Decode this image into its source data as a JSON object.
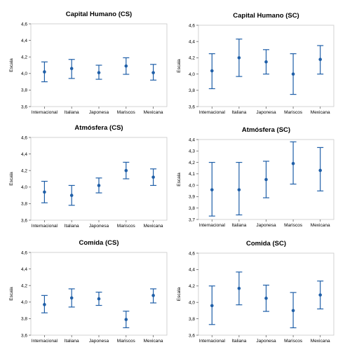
{
  "colors": {
    "marker": "#1f5fa8",
    "frame": "#c8c8c8"
  },
  "chart_data": [
    {
      "type": "errorbar",
      "title": "Capital Humano (CS)",
      "ylabel": "Escala",
      "categories": [
        "Internacional",
        "Italiana",
        "Japonesa",
        "Mariscos",
        "Mexicana"
      ],
      "yticks": [
        "3,6",
        "3,8",
        "4,0",
        "4,2",
        "4,4",
        "4,6"
      ],
      "ylim": [
        3.6,
        4.6
      ],
      "means": [
        4.02,
        4.06,
        4.01,
        4.09,
        4.01
      ],
      "lower": [
        3.9,
        3.94,
        3.93,
        3.99,
        3.92
      ],
      "upper": [
        4.14,
        4.17,
        4.1,
        4.19,
        4.11
      ],
      "grid": false
    },
    {
      "type": "errorbar",
      "title": "Capital Humano (SC)",
      "ylabel": "Escala",
      "categories": [
        "Internacional",
        "Italiana",
        "Japonesa",
        "Mariscos",
        "Mexicana"
      ],
      "yticks": [
        "3,6",
        "3,8",
        "4,0",
        "4,2",
        "4,4",
        "4,6"
      ],
      "ylim": [
        3.6,
        4.6
      ],
      "means": [
        4.04,
        4.2,
        4.15,
        4.0,
        4.18
      ],
      "lower": [
        3.82,
        3.97,
        4.0,
        3.75,
        4.0
      ],
      "upper": [
        4.25,
        4.43,
        4.3,
        4.25,
        4.35
      ],
      "grid": false
    },
    {
      "type": "errorbar",
      "title": "Atmósfera (CS)",
      "ylabel": "Escala",
      "categories": [
        "Internacional",
        "Italiana",
        "Japonesa",
        "Mariscos",
        "Mexicana"
      ],
      "yticks": [
        "3,6",
        "3,8",
        "4,0",
        "4,2",
        "4,4",
        "4,6"
      ],
      "ylim": [
        3.6,
        4.6
      ],
      "means": [
        3.94,
        3.9,
        4.02,
        4.2,
        4.12
      ],
      "lower": [
        3.81,
        3.78,
        3.93,
        4.1,
        4.02
      ],
      "upper": [
        4.07,
        4.02,
        4.11,
        4.3,
        4.22
      ],
      "grid": false
    },
    {
      "type": "errorbar",
      "title": "Atmósfera (SC)",
      "ylabel": "Escala",
      "categories": [
        "Internacional",
        "Italiana",
        "Japonesa",
        "Mariscos",
        "Mexicana"
      ],
      "yticks": [
        "3,7",
        "3,8",
        "3,9",
        "4,0",
        "4,1",
        "4,2",
        "4,3",
        "4,4"
      ],
      "ylim": [
        3.7,
        4.4
      ],
      "means": [
        3.96,
        3.96,
        4.05,
        4.19,
        4.13
      ],
      "lower": [
        3.73,
        3.74,
        3.89,
        4.01,
        3.95
      ],
      "upper": [
        4.2,
        4.2,
        4.21,
        4.38,
        4.33
      ],
      "grid": false
    },
    {
      "type": "errorbar",
      "title": "Comida (CS)",
      "ylabel": "Escala",
      "categories": [
        "Internacional",
        "Italiana",
        "Japonesa",
        "Mariscos",
        "Mexicana"
      ],
      "yticks": [
        "3,6",
        "3,8",
        "4,0",
        "4,2",
        "4,4",
        "4,6"
      ],
      "ylim": [
        3.6,
        4.6
      ],
      "means": [
        3.97,
        4.05,
        4.04,
        3.79,
        4.08
      ],
      "lower": [
        3.87,
        3.94,
        3.96,
        3.69,
        3.99
      ],
      "upper": [
        4.08,
        4.16,
        4.12,
        3.89,
        4.16
      ],
      "grid": false
    },
    {
      "type": "errorbar",
      "title": "Comida (SC)",
      "ylabel": "Escala",
      "categories": [
        "Internacional",
        "Italiana",
        "Japonesa",
        "Mariscos",
        "Mexicana"
      ],
      "yticks": [
        "3,6",
        "3,8",
        "4,0",
        "4,2",
        "4,4",
        "4,6"
      ],
      "ylim": [
        3.6,
        4.6
      ],
      "means": [
        3.96,
        4.17,
        4.05,
        3.9,
        4.09
      ],
      "lower": [
        3.73,
        3.97,
        3.89,
        3.69,
        3.92
      ],
      "upper": [
        4.2,
        4.37,
        4.21,
        4.12,
        4.26
      ],
      "grid": false
    }
  ]
}
